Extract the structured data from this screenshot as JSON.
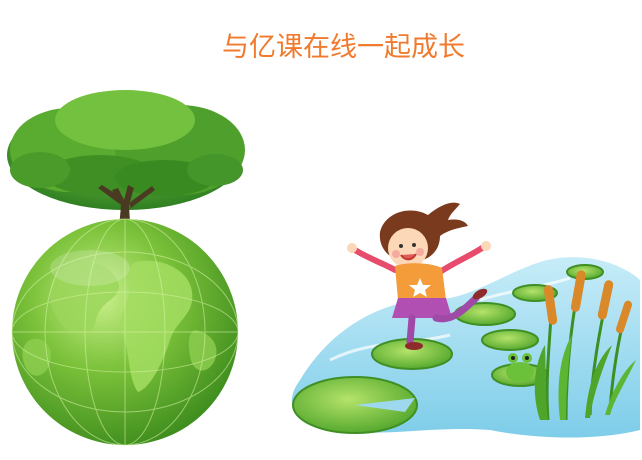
{
  "slogan": {
    "text": "与亿课在线一起成长",
    "color": "#f07b2e"
  },
  "illustration": {
    "left_image": "earth-with-tree",
    "right_image": "girl-hopping-lily-pads",
    "colors": {
      "globe_green": "#5aa828",
      "tree_green": "#3f9a2a",
      "water_blue": "#9ed8ef",
      "lily_pad_green": "#7fc63a",
      "cattail_brown": "#d9882a"
    }
  }
}
